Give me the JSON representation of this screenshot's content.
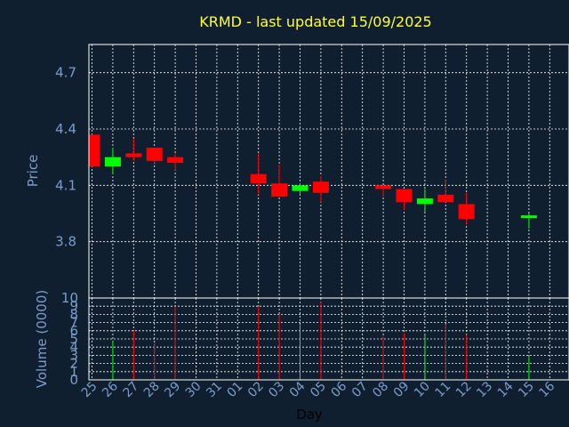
{
  "title": "KRMD - last updated 15/09/2025",
  "colors": {
    "background": "#0f1f30",
    "up": "#00ff00",
    "down": "#ff0000",
    "title": "#ffff33",
    "text": "#7d9cc7",
    "grid": "#ffffff"
  },
  "chart_data": [
    {
      "type": "candlestick",
      "ylabel": "Price",
      "ylim": [
        3.5,
        4.85
      ],
      "yticks": [
        "3.8",
        "4.1",
        "4.4",
        "4.7"
      ],
      "ytick_values": [
        3.8,
        4.1,
        4.4,
        4.7
      ],
      "grid": true,
      "categories": [
        "25",
        "26",
        "27",
        "28",
        "29",
        "30",
        "31",
        "01",
        "02",
        "03",
        "04",
        "05",
        "06",
        "07",
        "08",
        "09",
        "10",
        "11",
        "12",
        "13",
        "14",
        "15",
        "16"
      ],
      "candles": [
        {
          "day": "25",
          "open": 4.37,
          "close": 4.2,
          "high": 4.37,
          "low": 4.2
        },
        {
          "day": "26",
          "open": 4.2,
          "close": 4.25,
          "high": 4.3,
          "low": 4.16
        },
        {
          "day": "27",
          "open": 4.27,
          "close": 4.25,
          "high": 4.35,
          "low": 4.23
        },
        {
          "day": "28",
          "open": 4.3,
          "close": 4.23,
          "high": 4.3,
          "low": 4.21
        },
        {
          "day": "29",
          "open": 4.25,
          "close": 4.22,
          "high": 4.27,
          "low": 4.18
        },
        {
          "day": "02",
          "open": 4.16,
          "close": 4.11,
          "high": 4.27,
          "low": 4.05
        },
        {
          "day": "03",
          "open": 4.11,
          "close": 4.04,
          "high": 4.21,
          "low": 4.04
        },
        {
          "day": "04",
          "open": 4.07,
          "close": 4.1,
          "high": 4.11,
          "low": 4.05
        },
        {
          "day": "05",
          "open": 4.12,
          "close": 4.06,
          "high": 4.15,
          "low": 4.01
        },
        {
          "day": "08",
          "open": 4.1,
          "close": 4.08,
          "high": 4.1,
          "low": 4.04
        },
        {
          "day": "09",
          "open": 4.08,
          "close": 4.01,
          "high": 4.08,
          "low": 3.97
        },
        {
          "day": "10",
          "open": 4.0,
          "close": 4.03,
          "high": 4.08,
          "low": 3.96
        },
        {
          "day": "11",
          "open": 4.05,
          "close": 4.01,
          "high": 4.13,
          "low": 4.01
        },
        {
          "day": "12",
          "open": 4.0,
          "close": 3.92,
          "high": 4.06,
          "low": 3.89
        },
        {
          "day": "15",
          "open": 3.93,
          "close": 3.94,
          "high": 3.95,
          "low": 3.87
        }
      ]
    },
    {
      "type": "bar",
      "xlabel": "Day",
      "ylabel": "Volume (0000)",
      "ylim": [
        0,
        10
      ],
      "yticks": [
        "0",
        "1",
        "2",
        "3",
        "4",
        "5",
        "6",
        "7",
        "8",
        "9",
        "10"
      ],
      "ytick_values": [
        0,
        1,
        2,
        3,
        4,
        5,
        6,
        7,
        8,
        9,
        10
      ],
      "categories": [
        "25",
        "26",
        "27",
        "28",
        "29",
        "30",
        "31",
        "01",
        "02",
        "03",
        "04",
        "05",
        "06",
        "07",
        "08",
        "09",
        "10",
        "11",
        "12",
        "13",
        "14",
        "15",
        "16"
      ],
      "volumes": [
        {
          "day": "26",
          "value": 4.7,
          "direction": "up"
        },
        {
          "day": "27",
          "value": 6.0,
          "direction": "down"
        },
        {
          "day": "28",
          "value": 4.5,
          "direction": "down"
        },
        {
          "day": "29",
          "value": 9.0,
          "direction": "down"
        },
        {
          "day": "02",
          "value": 9.0,
          "direction": "down"
        },
        {
          "day": "03",
          "value": 8.0,
          "direction": "down"
        },
        {
          "day": "04",
          "value": 6.7,
          "direction": "up"
        },
        {
          "day": "05",
          "value": 9.5,
          "direction": "down"
        },
        {
          "day": "08",
          "value": 5.3,
          "direction": "down"
        },
        {
          "day": "09",
          "value": 5.7,
          "direction": "down"
        },
        {
          "day": "10",
          "value": 5.5,
          "direction": "up"
        },
        {
          "day": "11",
          "value": 6.8,
          "direction": "down"
        },
        {
          "day": "12",
          "value": 5.5,
          "direction": "down"
        },
        {
          "day": "15",
          "value": 2.8,
          "direction": "up"
        }
      ]
    }
  ]
}
